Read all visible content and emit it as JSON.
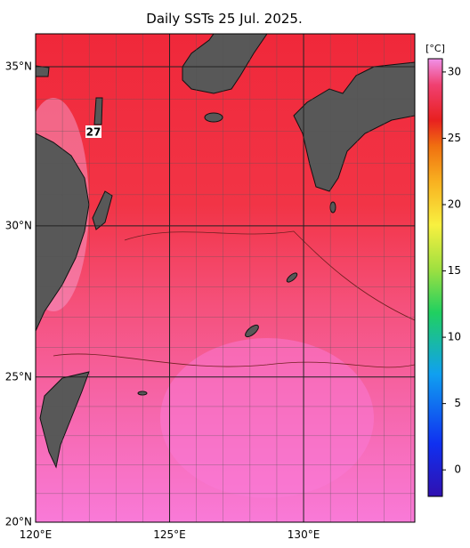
{
  "title": "Daily SSTs 25 Jul. 2025.",
  "map": {
    "lon_extent": [
      120,
      134.15
    ],
    "lat_extent": [
      20,
      36
    ],
    "lat_ticks": [
      {
        "value": 35,
        "label": "35°N"
      },
      {
        "value": 30,
        "label": "30°N"
      },
      {
        "value": 25,
        "label": "25°N"
      },
      {
        "value": 20,
        "label": "20°N"
      }
    ],
    "lon_ticks": [
      {
        "value": 120,
        "label": "120°E"
      },
      {
        "value": 125,
        "label": "125°E"
      },
      {
        "value": 130,
        "label": "130°E"
      }
    ],
    "contour_label": "27"
  },
  "colorbar": {
    "unit": "[°C]",
    "range": [
      -2,
      31
    ],
    "ticks": [
      0,
      5,
      10,
      15,
      20,
      25,
      30
    ]
  }
}
